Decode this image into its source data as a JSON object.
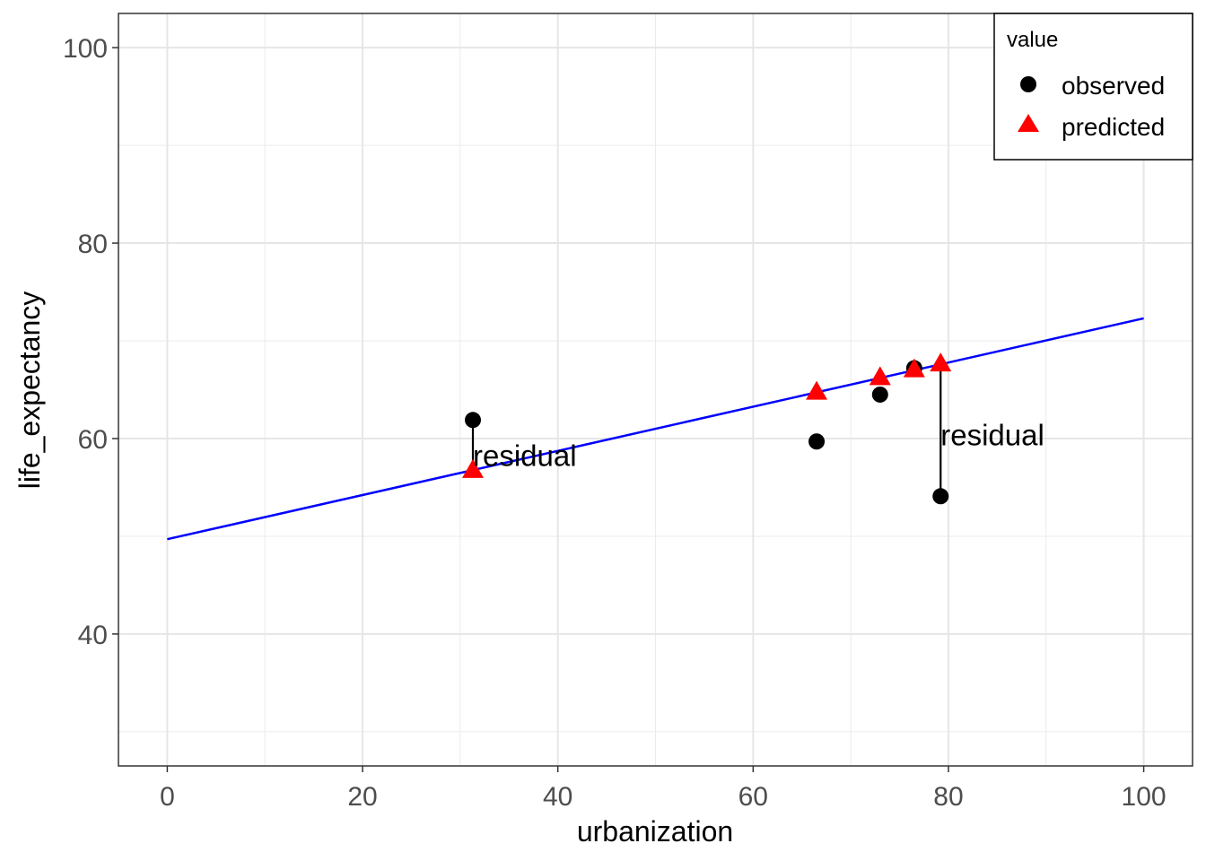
{
  "chart_data": {
    "type": "scatter",
    "xlabel": "urbanization",
    "ylabel": "life_expectancy",
    "xlim": [
      -5,
      105
    ],
    "ylim": [
      26.5,
      103.5
    ],
    "x_ticks": [
      0,
      20,
      40,
      60,
      80,
      100
    ],
    "y_ticks": [
      40,
      60,
      80,
      100
    ],
    "x_tick_labels": [
      "0",
      "20",
      "40",
      "60",
      "80",
      "100"
    ],
    "y_tick_labels": [
      "40",
      "60",
      "80",
      "100"
    ],
    "grid": true,
    "legend": {
      "title": "value",
      "placement": "top-right",
      "entries": [
        {
          "label": "observed",
          "shape": "circle",
          "color": "#000000"
        },
        {
          "label": "predicted",
          "shape": "triangle",
          "color": "#ff0000"
        }
      ]
    },
    "series": [
      {
        "name": "observed",
        "shape": "circle",
        "color": "#000000",
        "points": [
          {
            "x": 31.3,
            "y": 61.9
          },
          {
            "x": 66.5,
            "y": 59.7
          },
          {
            "x": 73.0,
            "y": 64.5
          },
          {
            "x": 76.5,
            "y": 67.2
          },
          {
            "x": 79.2,
            "y": 54.1
          }
        ]
      },
      {
        "name": "predicted",
        "shape": "triangle",
        "color": "#ff0000",
        "points": [
          {
            "x": 31.3,
            "y": 56.8
          },
          {
            "x": 66.5,
            "y": 64.8
          },
          {
            "x": 73.0,
            "y": 66.3
          },
          {
            "x": 76.5,
            "y": 67.1
          },
          {
            "x": 79.2,
            "y": 67.7
          }
        ]
      }
    ],
    "regression_line": {
      "color": "#0000ff",
      "x": [
        0,
        100
      ],
      "y": [
        49.7,
        72.3
      ]
    },
    "residual_segments": [
      {
        "x": 31.3,
        "y_from": 61.9,
        "y_to": 56.8
      },
      {
        "x": 79.2,
        "y_from": 54.1,
        "y_to": 67.7
      }
    ],
    "annotations": [
      {
        "text": "residual",
        "x": 31.3,
        "y": 58.3
      },
      {
        "text": "residual",
        "x": 79.2,
        "y": 60.4
      }
    ]
  }
}
